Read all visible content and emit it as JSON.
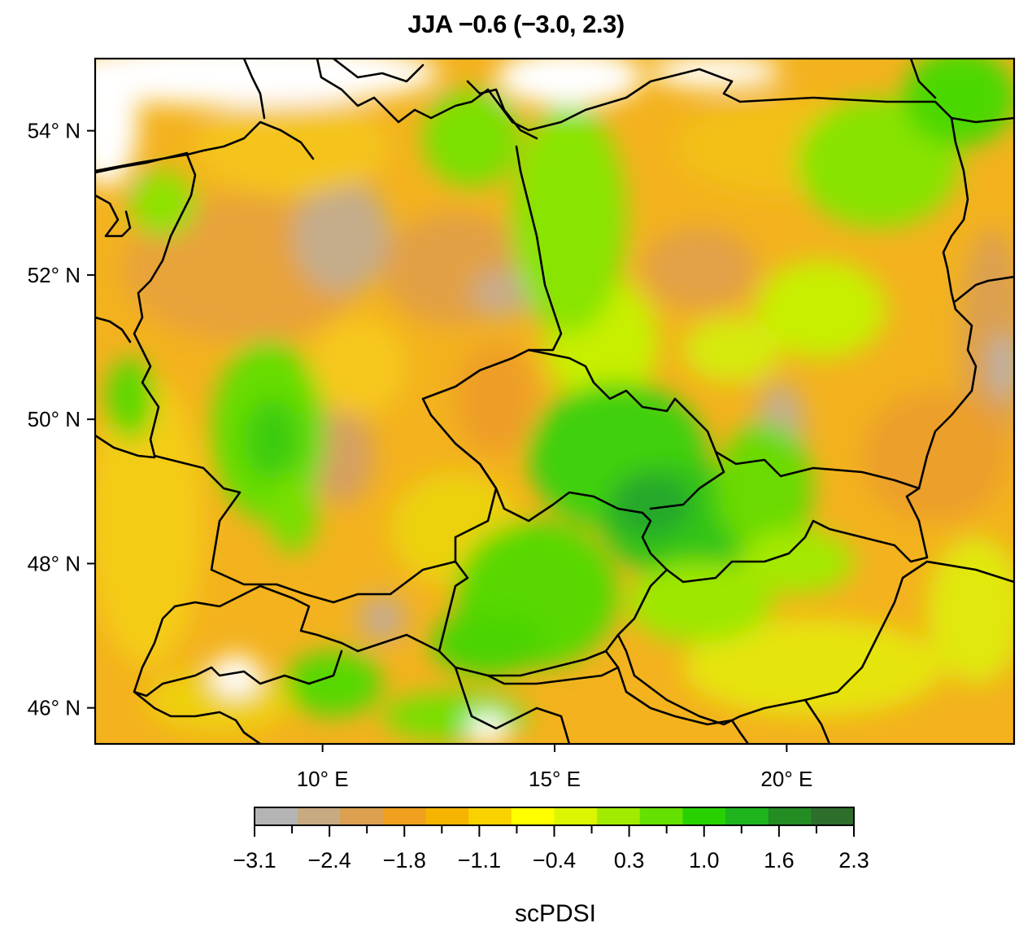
{
  "title": "JJA −0.6 (−3.0, 2.3)",
  "map": {
    "lon_range": [
      5.1,
      24.9
    ],
    "lat_range": [
      45.5,
      55.0
    ],
    "lat_ticks": [
      {
        "value": 54,
        "label": "54° N"
      },
      {
        "value": 52,
        "label": "52° N"
      },
      {
        "value": 50,
        "label": "50° N"
      },
      {
        "value": 48,
        "label": "48° N"
      },
      {
        "value": 46,
        "label": "46° N"
      }
    ],
    "lon_ticks": [
      {
        "value": 10,
        "label": "10° E"
      },
      {
        "value": 15,
        "label": "15° E"
      },
      {
        "value": 20,
        "label": "20° E"
      }
    ]
  },
  "colorbar": {
    "title": "scPDSI",
    "range": [
      -3.1,
      2.3
    ],
    "tick_labels": [
      "−3.1",
      "−2.4",
      "−1.8",
      "−1.1",
      "−0.4",
      "0.3",
      "1.0",
      "1.6",
      "2.3"
    ],
    "colors": [
      "#b4b4b4",
      "#c8aa82",
      "#dca050",
      "#f0a01e",
      "#f5b400",
      "#fad200",
      "#ffff00",
      "#dcf500",
      "#a0eb00",
      "#64e100",
      "#28d200",
      "#1eb41e",
      "#238c23",
      "#2d6e2d"
    ]
  }
}
